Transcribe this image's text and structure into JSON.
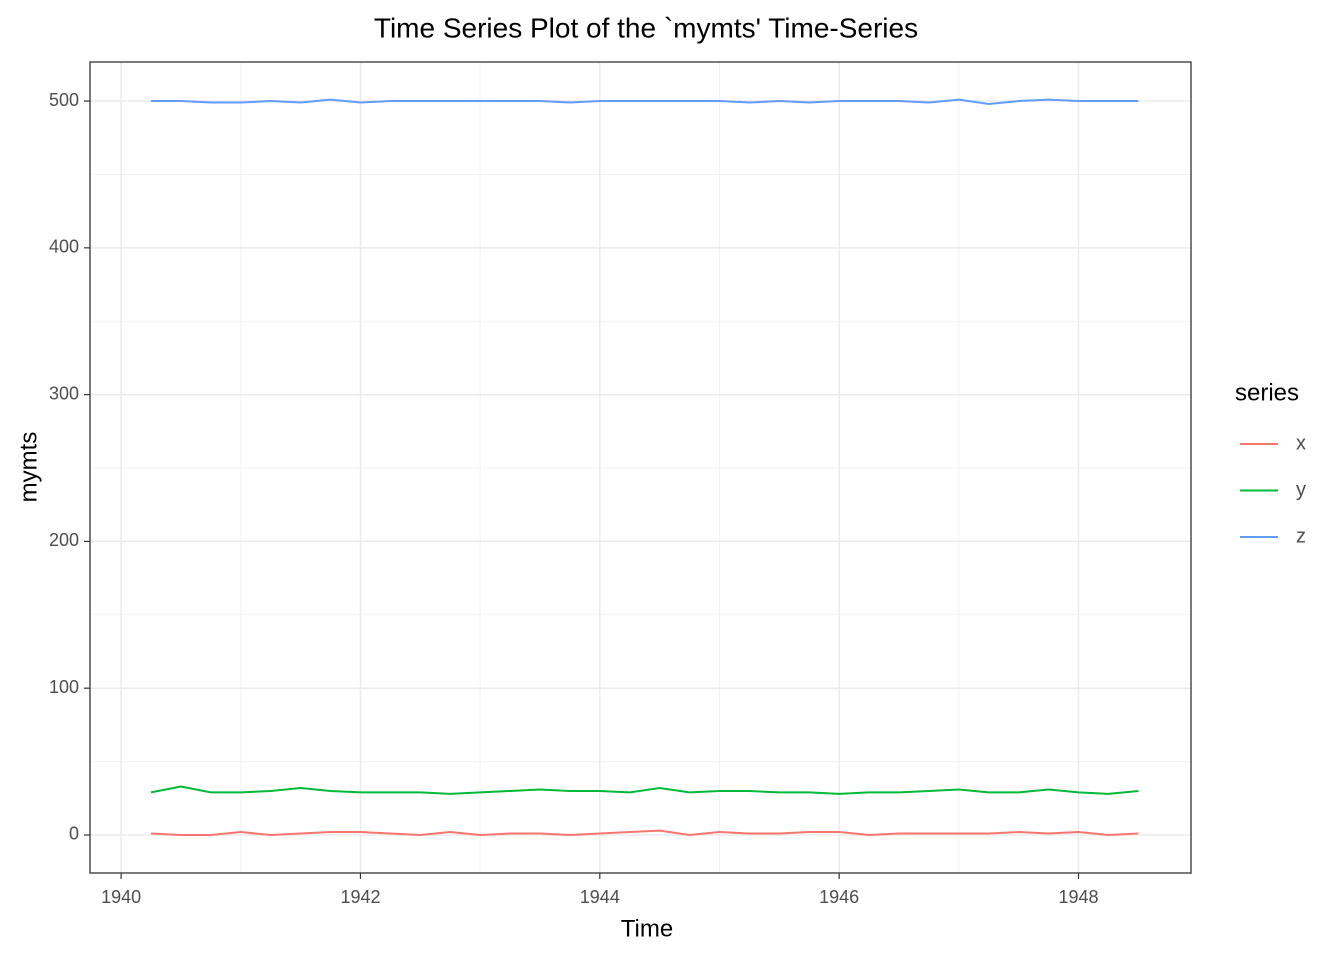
{
  "chart_data": {
    "type": "line",
    "title": "Time Series Plot of the `mymts' Time-Series",
    "x_label": "Time",
    "y_label": "mymts",
    "legend_title": "series",
    "legend_position": "right",
    "x": [
      1940.25,
      1940.5,
      1940.75,
      1941,
      1941.25,
      1941.5,
      1941.75,
      1942,
      1942.25,
      1942.5,
      1942.75,
      1943,
      1943.25,
      1943.5,
      1943.75,
      1944,
      1944.25,
      1944.5,
      1944.75,
      1945,
      1945.25,
      1945.5,
      1945.75,
      1946,
      1946.25,
      1946.5,
      1946.75,
      1947,
      1947.25,
      1947.5,
      1947.75,
      1948,
      1948.25,
      1948.5
    ],
    "series": [
      {
        "name": "x",
        "color": "#F8766D",
        "values": [
          1,
          0,
          0,
          2,
          0,
          1,
          2,
          2,
          1,
          0,
          2,
          0,
          1,
          1,
          0,
          1,
          2,
          3,
          0,
          2,
          1,
          1,
          2,
          2,
          0,
          1,
          1,
          1,
          1,
          2,
          1,
          2,
          0,
          1
        ]
      },
      {
        "name": "y",
        "color": "#00BA38",
        "values": [
          29,
          33,
          29,
          29,
          30,
          32,
          30,
          29,
          29,
          29,
          28,
          29,
          30,
          31,
          30,
          30,
          29,
          32,
          29,
          30,
          30,
          29,
          29,
          28,
          29,
          29,
          30,
          31,
          29,
          29,
          31,
          29,
          28,
          30
        ]
      },
      {
        "name": "z",
        "color": "#619CFF",
        "values": [
          500,
          500,
          499,
          499,
          500,
          499,
          501,
          499,
          500,
          500,
          500,
          500,
          500,
          500,
          499,
          500,
          500,
          500,
          500,
          500,
          499,
          500,
          499,
          500,
          500,
          500,
          499,
          501,
          498,
          500,
          501,
          500,
          500,
          500
        ]
      }
    ],
    "xlim": [
      1939.74,
      1948.94
    ],
    "ylim": [
      -25.9,
      526.6
    ],
    "xticks": [
      1940,
      1942,
      1944,
      1946,
      1948
    ],
    "yticks": [
      0,
      100,
      200,
      300,
      400,
      500
    ],
    "grid": true
  }
}
